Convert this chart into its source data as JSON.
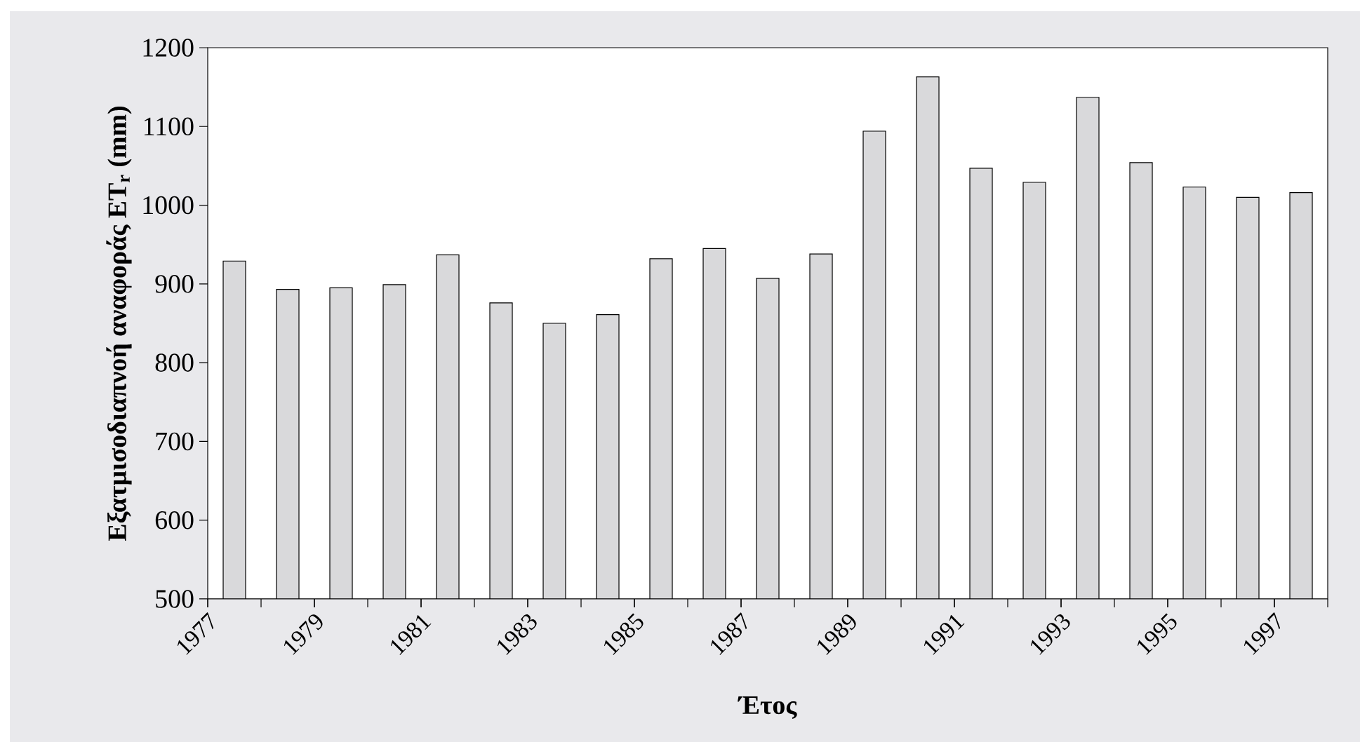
{
  "chart_data": {
    "type": "bar",
    "xlabel": "Έτος",
    "ylabel": "Εξατμισοδιαπνοή αναφοράς ET$_{r}$ (mm)",
    "categories": [
      "1977",
      null,
      "1979",
      null,
      "1981",
      null,
      "1983",
      null,
      "1985",
      null,
      "1987",
      null,
      "1989",
      null,
      "1991",
      null,
      "1993",
      null,
      "1995",
      null,
      "1997"
    ],
    "values": [
      929,
      893,
      895,
      899,
      937,
      876,
      850,
      861,
      932,
      945,
      907,
      938,
      1094,
      1163,
      1047,
      1029,
      1137,
      1054,
      1023,
      1010,
      1016
    ],
    "color": "#d9d9db",
    "ylim": [
      500,
      1200
    ],
    "yticks": [
      500,
      600,
      700,
      800,
      900,
      1000,
      1100,
      1200
    ]
  }
}
